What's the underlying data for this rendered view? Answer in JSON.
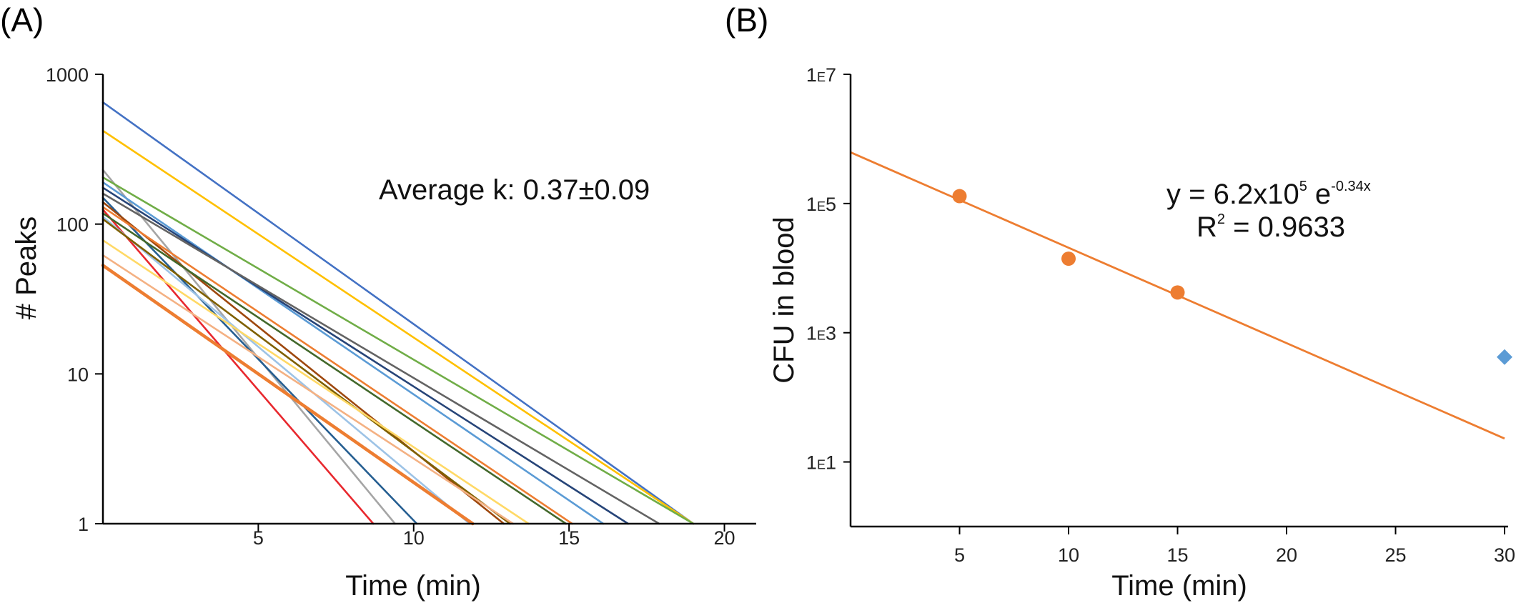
{
  "chart_data": [
    {
      "panel_label": "(A)",
      "type": "line",
      "xlabel": "Time (min)",
      "ylabel": "# Peaks",
      "xlim": [
        0,
        21
      ],
      "ylim": [
        1,
        1000
      ],
      "yscale": "log",
      "xticks": [
        5,
        10,
        15,
        20
      ],
      "yticks": [
        1,
        10,
        100,
        1000
      ],
      "grid": false,
      "legend": "none",
      "annotation": {
        "label": "Average k: ",
        "value": "0.37",
        "pm": "±",
        "err": "0.09"
      },
      "series": [
        {
          "color": "#4472c4",
          "start": [
            0,
            650
          ],
          "end": [
            19,
            1
          ]
        },
        {
          "color": "#ffc000",
          "start": [
            0,
            420
          ],
          "end": [
            19,
            1
          ]
        },
        {
          "color": "#a5a5a5",
          "start": [
            0,
            230
          ],
          "end": [
            9.4,
            1
          ]
        },
        {
          "color": "#70ad47",
          "start": [
            0,
            205
          ],
          "end": [
            19,
            1
          ]
        },
        {
          "color": "#5b9bd5",
          "start": [
            0,
            190
          ],
          "end": [
            16.1,
            1
          ]
        },
        {
          "color": "#264478",
          "start": [
            0,
            175
          ],
          "end": [
            16.9,
            1
          ]
        },
        {
          "color": "#636363",
          "start": [
            0,
            160
          ],
          "end": [
            17.9,
            1
          ]
        },
        {
          "color": "#255e91",
          "start": [
            0,
            150
          ],
          "end": [
            10.1,
            1
          ]
        },
        {
          "color": "#9e480e",
          "start": [
            0,
            140
          ],
          "end": [
            12.9,
            1
          ]
        },
        {
          "color": "#ed7d31",
          "start": [
            0,
            130
          ],
          "end": [
            15.1,
            1
          ]
        },
        {
          "color": "#e8282e",
          "start": [
            0,
            125
          ],
          "end": [
            8.7,
            1
          ]
        },
        {
          "color": "#43682b",
          "start": [
            0,
            118
          ],
          "end": [
            14.9,
            1
          ]
        },
        {
          "color": "#9dc3e6",
          "start": [
            0,
            112
          ],
          "end": [
            11.8,
            1
          ]
        },
        {
          "color": "#7f6000",
          "start": [
            0,
            108
          ],
          "end": [
            13.1,
            1
          ]
        },
        {
          "color": "#ffd966",
          "start": [
            0,
            78
          ],
          "end": [
            13.7,
            1
          ]
        },
        {
          "color": "#f4b183",
          "start": [
            0,
            62
          ],
          "end": [
            13.2,
            1
          ]
        },
        {
          "color": "#ed7d31",
          "start": [
            0,
            53
          ],
          "end": [
            11.9,
            1
          ],
          "thick": true
        }
      ]
    },
    {
      "panel_label": "(B)",
      "type": "scatter",
      "xlabel": "Time (min)",
      "ylabel": "CFU in blood",
      "xlim": [
        0,
        30
      ],
      "yscale": "log",
      "ylim_exp": [
        0,
        7
      ],
      "xticks": [
        5,
        10,
        15,
        20,
        25,
        30
      ],
      "ytick_labels": [
        {
          "exp": 7,
          "lead": "1",
          "mid": "E",
          "tail": "7"
        },
        {
          "exp": 5,
          "lead": "1",
          "mid": "E",
          "tail": "5"
        },
        {
          "exp": 3,
          "lead": "1",
          "mid": "E",
          "tail": "3"
        },
        {
          "exp": 1,
          "lead": "1",
          "mid": "E",
          "tail": "1"
        }
      ],
      "grid": false,
      "legend": "none",
      "points": [
        {
          "x": 5,
          "y": 130000,
          "marker": "circle",
          "color": "#ed7d31"
        },
        {
          "x": 10,
          "y": 14000,
          "marker": "circle",
          "color": "#ed7d31"
        },
        {
          "x": 15,
          "y": 4200,
          "marker": "circle",
          "color": "#ed7d31"
        },
        {
          "x": 30,
          "y": 420,
          "marker": "diamond",
          "color": "#5b9bd5"
        }
      ],
      "fit": {
        "color": "#ed7d31",
        "a": 620000,
        "k": -0.34,
        "x_range": [
          0,
          30
        ]
      },
      "equation": {
        "lhs": "y = 6.2x10",
        "sup1": "5",
        "mid": " e",
        "sup2": "-0.34x"
      },
      "r2": {
        "lhs": "R",
        "sup": "2",
        "rhs": " = 0.9633"
      }
    }
  ]
}
